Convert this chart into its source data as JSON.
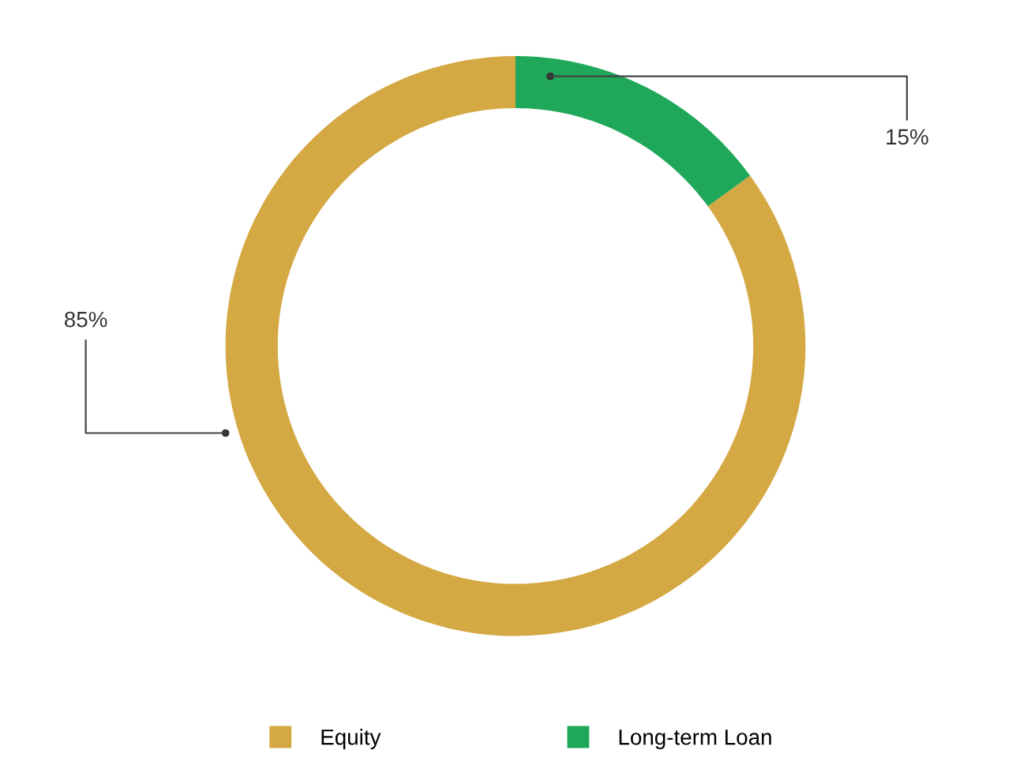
{
  "chart_data": {
    "type": "donut",
    "categories": [
      "Equity",
      "Long-term Loan"
    ],
    "values": [
      85,
      15
    ],
    "colors": [
      "#d4a843",
      "#1fa85a"
    ],
    "value_labels": [
      "85%",
      "15%"
    ],
    "legend": "bottom"
  }
}
